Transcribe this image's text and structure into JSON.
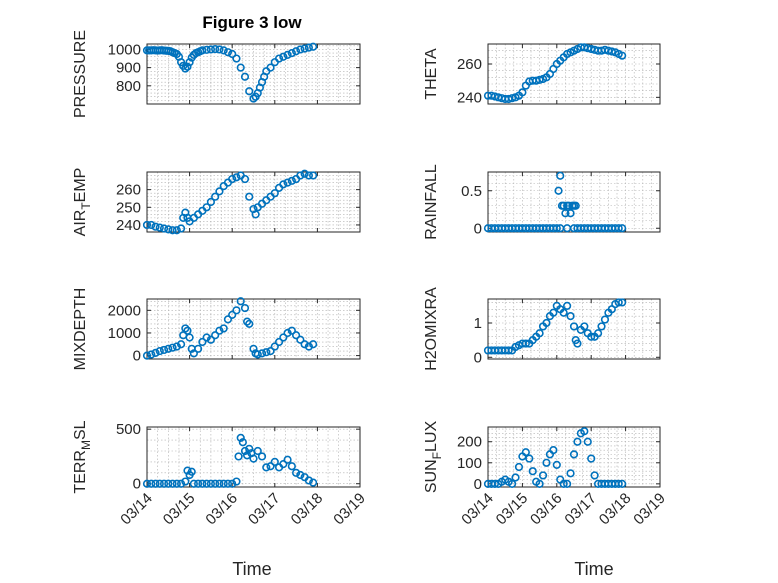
{
  "figure": {
    "title": "Figure 3 low",
    "accent_color": "#0072BD",
    "xlabel_left": "Time",
    "xlabel_right": "Time"
  },
  "chart_data": [
    {
      "type": "scatter",
      "ylabel": "PRESSURE",
      "ylim": [
        700,
        1030
      ],
      "yticks": [
        800,
        900,
        1000
      ],
      "xlim": [
        0,
        5
      ],
      "xticklabels": [
        "03/14",
        "03/15",
        "03/16",
        "03/17",
        "03/18",
        "03/19"
      ],
      "x": [
        0,
        0.05,
        0.1,
        0.15,
        0.2,
        0.25,
        0.3,
        0.35,
        0.4,
        0.45,
        0.5,
        0.55,
        0.6,
        0.65,
        0.7,
        0.75,
        0.8,
        0.85,
        0.9,
        0.95,
        1.0,
        1.05,
        1.1,
        1.15,
        1.2,
        1.25,
        1.3,
        1.4,
        1.5,
        1.6,
        1.7,
        1.8,
        1.9,
        2.0,
        2.1,
        2.2,
        2.3,
        2.4,
        2.5,
        2.55,
        2.6,
        2.65,
        2.7,
        2.75,
        2.8,
        2.9,
        3.0,
        3.1,
        3.2,
        3.3,
        3.4,
        3.5,
        3.6,
        3.7,
        3.8,
        3.9
      ],
      "y": [
        995,
        995,
        995,
        996,
        995,
        994,
        995,
        996,
        994,
        993,
        992,
        990,
        985,
        980,
        975,
        960,
        930,
        910,
        895,
        905,
        930,
        955,
        970,
        980,
        985,
        990,
        995,
        998,
        1000,
        1002,
        1000,
        995,
        985,
        975,
        950,
        900,
        850,
        770,
        730,
        740,
        760,
        790,
        820,
        850,
        880,
        900,
        930,
        950,
        960,
        970,
        980,
        990,
        1000,
        1005,
        1010,
        1015
      ]
    },
    {
      "type": "scatter",
      "ylabel": "THETA",
      "ylim": [
        236,
        272
      ],
      "yticks": [
        240,
        260
      ],
      "xlim": [
        0,
        5
      ],
      "xticklabels": [
        "03/14",
        "03/15",
        "03/16",
        "03/17",
        "03/18",
        "03/19"
      ],
      "x": [
        0,
        0.1,
        0.2,
        0.3,
        0.4,
        0.5,
        0.6,
        0.7,
        0.8,
        0.9,
        1.0,
        1.1,
        1.2,
        1.3,
        1.4,
        1.5,
        1.6,
        1.7,
        1.8,
        1.9,
        2.0,
        2.1,
        2.2,
        2.3,
        2.4,
        2.5,
        2.6,
        2.7,
        2.8,
        2.9,
        3.0,
        3.1,
        3.2,
        3.3,
        3.4,
        3.5,
        3.6,
        3.7,
        3.8,
        3.9
      ],
      "y": [
        241,
        241,
        240.5,
        240,
        239.5,
        239,
        239,
        239.5,
        240,
        241,
        243,
        247,
        249.5,
        250,
        250,
        250.5,
        251,
        252,
        254,
        257,
        260,
        262,
        264,
        266,
        267,
        268,
        269,
        270,
        270,
        269.5,
        269,
        268.5,
        268,
        268,
        268.5,
        268,
        267.5,
        267,
        266,
        265
      ]
    },
    {
      "type": "scatter",
      "ylabel": "AIR_TEMP",
      "ylim": [
        236,
        270
      ],
      "yticks": [
        240,
        250,
        260
      ],
      "xlim": [
        0,
        5
      ],
      "xticklabels": [
        "03/14",
        "03/15",
        "03/16",
        "03/17",
        "03/18",
        "03/19"
      ],
      "x": [
        0,
        0.1,
        0.2,
        0.3,
        0.4,
        0.5,
        0.6,
        0.7,
        0.8,
        0.85,
        0.9,
        0.95,
        1.0,
        1.1,
        1.2,
        1.3,
        1.4,
        1.5,
        1.6,
        1.7,
        1.8,
        1.9,
        2.0,
        2.1,
        2.2,
        2.3,
        2.4,
        2.5,
        2.55,
        2.6,
        2.7,
        2.8,
        2.9,
        3.0,
        3.1,
        3.2,
        3.3,
        3.4,
        3.5,
        3.6,
        3.7,
        3.8,
        3.9
      ],
      "y": [
        240,
        240,
        239,
        238.5,
        238,
        237.5,
        237,
        237,
        238,
        244,
        247,
        244,
        242,
        244,
        246,
        248,
        250,
        253,
        256,
        259,
        262,
        264,
        266,
        267,
        268,
        266,
        256,
        249,
        246,
        250,
        252,
        254,
        256,
        258,
        261,
        263,
        264,
        265,
        266,
        268,
        269,
        268,
        268
      ]
    },
    {
      "type": "scatter",
      "ylabel": "RAINFALL",
      "ylim": [
        -0.05,
        0.75
      ],
      "yticks": [
        0,
        0.5
      ],
      "xlim": [
        0,
        5
      ],
      "xticklabels": [
        "03/14",
        "03/15",
        "03/16",
        "03/17",
        "03/18",
        "03/19"
      ],
      "x": [
        0,
        0.1,
        0.2,
        0.3,
        0.4,
        0.5,
        0.6,
        0.7,
        0.8,
        0.9,
        1.0,
        1.1,
        1.2,
        1.3,
        1.4,
        1.5,
        1.6,
        1.7,
        1.8,
        1.9,
        2.0,
        2.05,
        2.1,
        2.15,
        2.2,
        2.25,
        2.3,
        2.35,
        2.4,
        2.45,
        2.5,
        2.55,
        2.6,
        2.7,
        2.8,
        2.9,
        3.0,
        3.1,
        3.2,
        3.3,
        3.4,
        3.5,
        3.6,
        3.7,
        3.8,
        3.9,
        2.1,
        2.3,
        2.5
      ],
      "y": [
        0,
        0,
        0,
        0,
        0,
        0,
        0,
        0,
        0,
        0,
        0,
        0,
        0,
        0,
        0,
        0,
        0,
        0,
        0,
        0,
        0,
        0.5,
        0.7,
        0.3,
        0.3,
        0.2,
        0.3,
        0.3,
        0.2,
        0.3,
        0.3,
        0.3,
        0,
        0,
        0,
        0,
        0,
        0,
        0,
        0,
        0,
        0,
        0,
        0,
        0,
        0,
        0,
        0,
        0
      ]
    },
    {
      "type": "scatter",
      "ylabel": "MIXDEPTH",
      "ylim": [
        -150,
        2500
      ],
      "yticks": [
        0,
        1000,
        2000
      ],
      "xlim": [
        0,
        5
      ],
      "xticklabels": [
        "03/14",
        "03/15",
        "03/16",
        "03/17",
        "03/18",
        "03/19"
      ],
      "x": [
        0,
        0.1,
        0.2,
        0.3,
        0.4,
        0.5,
        0.6,
        0.7,
        0.8,
        0.85,
        0.9,
        0.95,
        1.0,
        1.05,
        1.1,
        1.2,
        1.3,
        1.4,
        1.5,
        1.6,
        1.7,
        1.8,
        1.9,
        2.0,
        2.1,
        2.2,
        2.3,
        2.35,
        2.4,
        2.5,
        2.55,
        2.6,
        2.7,
        2.8,
        2.9,
        3.0,
        3.1,
        3.2,
        3.3,
        3.4,
        3.5,
        3.6,
        3.7,
        3.8,
        3.9
      ],
      "y": [
        0,
        50,
        120,
        200,
        250,
        300,
        350,
        400,
        500,
        900,
        1200,
        1100,
        800,
        300,
        100,
        300,
        600,
        800,
        700,
        900,
        1100,
        1200,
        1600,
        1800,
        2000,
        2400,
        2100,
        1500,
        1400,
        300,
        100,
        50,
        100,
        150,
        200,
        400,
        600,
        800,
        1000,
        1100,
        900,
        700,
        500,
        400,
        500
      ]
    },
    {
      "type": "scatter",
      "ylabel": "H2OMIXRA",
      "ylim": [
        -0.05,
        1.7
      ],
      "yticks": [
        0,
        1
      ],
      "xlim": [
        0,
        5
      ],
      "xticklabels": [
        "03/14",
        "03/15",
        "03/16",
        "03/17",
        "03/18",
        "03/19"
      ],
      "x": [
        0,
        0.1,
        0.2,
        0.3,
        0.4,
        0.5,
        0.6,
        0.7,
        0.8,
        0.9,
        1.0,
        1.1,
        1.2,
        1.3,
        1.4,
        1.5,
        1.6,
        1.7,
        1.8,
        1.9,
        2.0,
        2.1,
        2.2,
        2.3,
        2.4,
        2.5,
        2.55,
        2.6,
        2.7,
        2.8,
        2.9,
        3.0,
        3.1,
        3.2,
        3.3,
        3.4,
        3.5,
        3.6,
        3.7,
        3.8,
        3.9
      ],
      "y": [
        0.2,
        0.2,
        0.2,
        0.2,
        0.2,
        0.2,
        0.2,
        0.2,
        0.3,
        0.35,
        0.4,
        0.4,
        0.4,
        0.5,
        0.6,
        0.7,
        0.9,
        1.0,
        1.2,
        1.3,
        1.5,
        1.4,
        1.3,
        1.5,
        1.2,
        0.9,
        0.5,
        0.4,
        0.8,
        0.9,
        0.7,
        0.6,
        0.6,
        0.7,
        0.9,
        1.1,
        1.3,
        1.4,
        1.55,
        1.6,
        1.6
      ]
    },
    {
      "type": "scatter",
      "ylabel": "TERR_MSL",
      "ylim": [
        -30,
        520
      ],
      "yticks": [
        0,
        500
      ],
      "xlim": [
        0,
        5
      ],
      "xticklabels": [
        "03/14",
        "03/15",
        "03/16",
        "03/17",
        "03/18",
        "03/19"
      ],
      "x": [
        0,
        0.1,
        0.2,
        0.3,
        0.4,
        0.5,
        0.6,
        0.7,
        0.8,
        0.9,
        0.95,
        1.0,
        1.05,
        1.1,
        1.2,
        1.3,
        1.4,
        1.5,
        1.6,
        1.7,
        1.8,
        1.9,
        2.0,
        2.1,
        2.15,
        2.2,
        2.25,
        2.3,
        2.35,
        2.4,
        2.45,
        2.5,
        2.6,
        2.7,
        2.8,
        2.9,
        3.0,
        3.1,
        3.2,
        3.3,
        3.4,
        3.5,
        3.6,
        3.7,
        3.8,
        3.9
      ],
      "y": [
        0,
        0,
        0,
        0,
        0,
        0,
        0,
        0,
        0,
        20,
        120,
        80,
        110,
        0,
        0,
        0,
        0,
        0,
        0,
        0,
        0,
        0,
        0,
        20,
        250,
        420,
        380,
        300,
        260,
        320,
        280,
        230,
        300,
        250,
        150,
        160,
        200,
        150,
        180,
        220,
        160,
        100,
        80,
        60,
        30,
        10
      ]
    },
    {
      "type": "scatter",
      "ylabel": "SUN_FLUX",
      "ylim": [
        -15,
        270
      ],
      "yticks": [
        0,
        100,
        200
      ],
      "xlim": [
        0,
        5
      ],
      "xticklabels": [
        "03/14",
        "03/15",
        "03/16",
        "03/17",
        "03/18",
        "03/19"
      ],
      "x": [
        0,
        0.1,
        0.2,
        0.3,
        0.4,
        0.5,
        0.6,
        0.7,
        0.8,
        0.9,
        1.0,
        1.1,
        1.2,
        1.3,
        1.4,
        1.5,
        1.6,
        1.7,
        1.8,
        1.9,
        2.0,
        2.1,
        2.2,
        2.3,
        2.4,
        2.5,
        2.6,
        2.7,
        2.8,
        2.9,
        3.0,
        3.1,
        3.2,
        3.3,
        3.4,
        3.5,
        3.6,
        3.7,
        3.8,
        3.9
      ],
      "y": [
        0,
        0,
        0,
        0,
        10,
        20,
        10,
        0,
        30,
        80,
        130,
        150,
        120,
        60,
        10,
        0,
        40,
        100,
        140,
        160,
        90,
        20,
        0,
        0,
        50,
        140,
        200,
        240,
        250,
        200,
        120,
        40,
        0,
        0,
        0,
        0,
        0,
        0,
        0,
        0
      ]
    }
  ]
}
